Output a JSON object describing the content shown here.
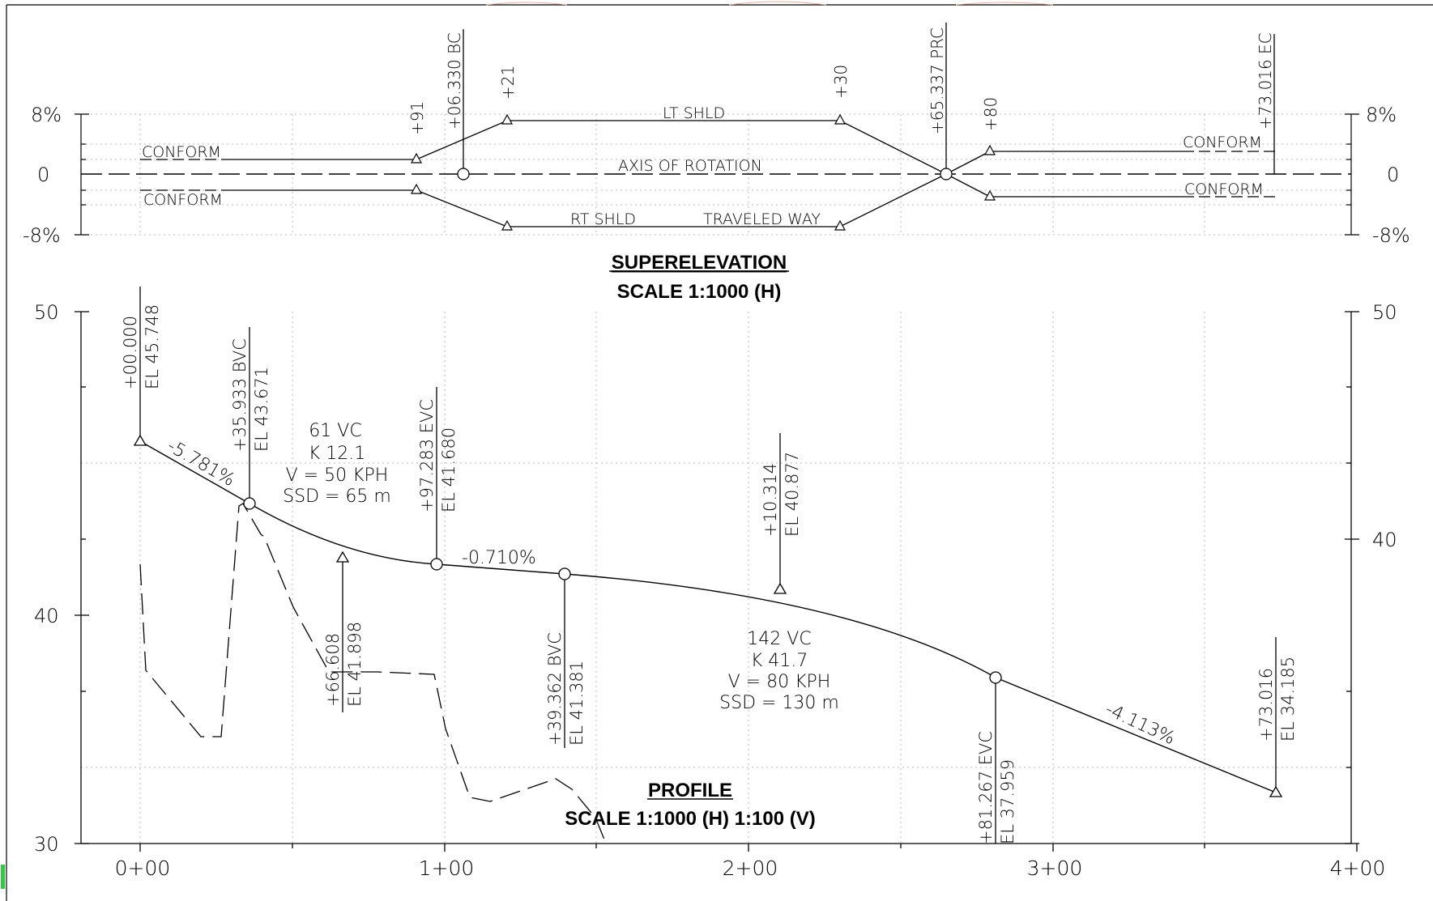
{
  "superelevation": {
    "title": "SUPERELEVATION",
    "scale": "SCALE  1:1000 (H)",
    "axis_labels": [
      "8%",
      "0",
      "-8%"
    ],
    "labels": {
      "lt_shld": "LT SHLD",
      "axis": "AXIS OF ROTATION",
      "rt_shld": "RT SHLD",
      "traveled_way": "TRAVELED WAY",
      "conform_left_top": "CONFORM",
      "conform_left_bottom": "CONFORM",
      "conform_right_top": "CONFORM",
      "conform_right_bottom": "CONFORM"
    },
    "stations": [
      {
        "name": "+91"
      },
      {
        "name": "+06.330 BC"
      },
      {
        "name": "+21"
      },
      {
        "name": "+30"
      },
      {
        "name": "+65.337 PRC"
      },
      {
        "name": "+80"
      },
      {
        "name": "+73.016 EC"
      }
    ]
  },
  "profile": {
    "title": "PROFILE",
    "scale": "SCALE  1:1000 (H)  1:100 (V)",
    "y_labels": {
      "left": [
        "50",
        "40",
        "30"
      ],
      "right": [
        "50",
        "40"
      ]
    },
    "x_labels": [
      "0+00",
      "1+00",
      "2+00",
      "3+00",
      "4+00"
    ],
    "grades": [
      "-5.781%",
      "-0.710%",
      "-4.113%"
    ],
    "curve1": {
      "vc": "61  VC",
      "k": "K  12.1",
      "v": "V  =  50  KPH",
      "ssd": "SSD  =  65  m"
    },
    "curve2": {
      "vc": "142  VC",
      "k": "K  41.7",
      "v": "V  =  80  KPH",
      "ssd": "SSD  =  130  m"
    },
    "points": [
      {
        "sta": "+00.000",
        "el": "EL 45.748"
      },
      {
        "sta": "+35.933 BVC",
        "el": "EL 43.671"
      },
      {
        "sta": "+66.608",
        "el": "EL 41.898"
      },
      {
        "sta": "+97.283 EVC",
        "el": "EL 41.680"
      },
      {
        "sta": "+39.362 BVC",
        "el": "EL 41.381"
      },
      {
        "sta": "+10.314",
        "el": "EL 40.877"
      },
      {
        "sta": "+81.267 EVC",
        "el": "EL 37.959"
      },
      {
        "sta": "+73.016",
        "el": "EL 34.185"
      }
    ]
  }
}
